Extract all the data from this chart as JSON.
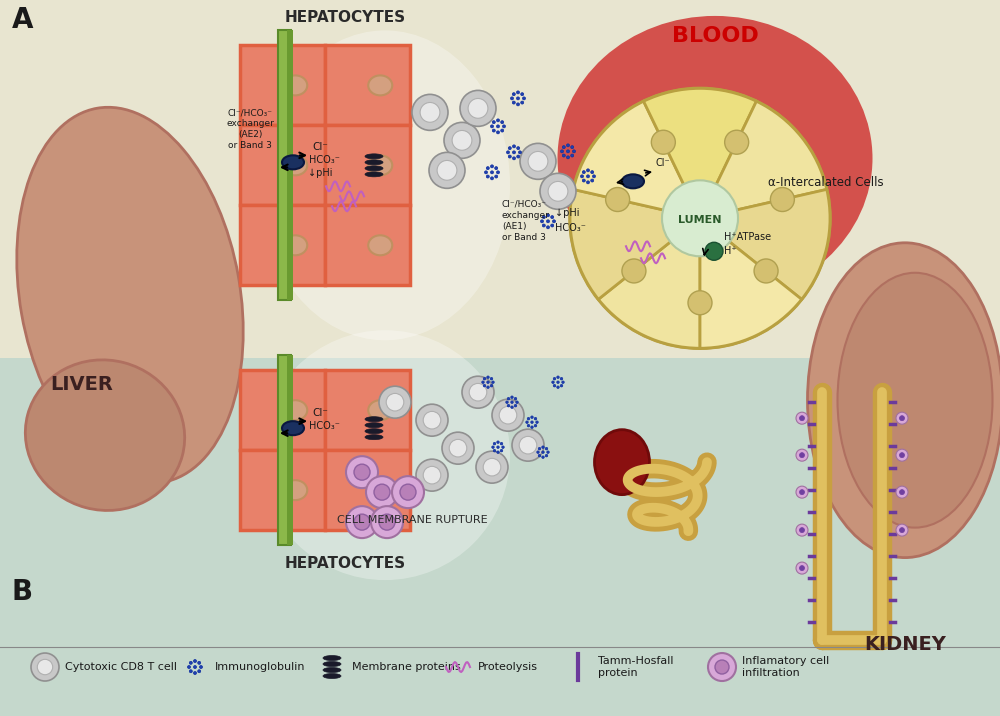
{
  "bg_top_color": "#e8e5d0",
  "bg_bottom_color": "#c5d8cc",
  "title_A": "A",
  "title_B": "B",
  "hepatocytes_label": "HEPATOCYTES",
  "liver_label": "LIVER",
  "kidney_label": "KIDNEY",
  "blood_label": "BLOOD",
  "lumen_label": "LUMEN",
  "alpha_label": "α-Intercalated Cells",
  "cell_membrane_label": "CELL MEMBRANE RUPTURE",
  "ae2_label": "Cl⁻/HCO₃⁻\nexchanger\n(AE2)\nor Band 3",
  "ae1_label": "Cl⁻/HCO₃⁻\nexchanger\n(AE1)\nor Band 3",
  "cl_label": "Cl⁻",
  "hco3_label": "HCO₃⁻",
  "phi_label": "↓pHi",
  "h_atpase_label": "H⁺ATPase",
  "h_label": "H⁺",
  "liver_color": "#c8937a",
  "liver_border": "#b07060",
  "liver_lobe_color": "#bc8870",
  "kidney_color": "#c8937a",
  "kidney_inner": "#be8870",
  "kidney_border": "#b07060",
  "hep_cell_color": "#e8816a",
  "hep_border_color": "#e06040",
  "nucleus_color": "#d4a080",
  "nucleus_border": "#c09060",
  "green_stripe1": "#8cb84a",
  "green_stripe2": "#6a9a30",
  "green_border": "#5a8a2a",
  "exchanger_color": "#1a3060",
  "exchanger_border": "#0a1840",
  "blood_color": "#cc2020",
  "tubule_outer": "#c8a040",
  "tubule_inner": "#e0c060",
  "tubule_lumen": "#f0e8c0",
  "wedge_colors": [
    "#f0e4a0",
    "#e8d890",
    "#f4e8a8",
    "#ece080",
    "#f0e4a0",
    "#e8d890",
    "#f4e8a8"
  ],
  "wedge_border": "#b8a040",
  "lumen_color": "#d8ecd0",
  "lumen_border": "#b0c8a0",
  "h_dot_color": "#2a7040",
  "h_dot_border": "#1a5030",
  "tamm_color": "#6b3a9b",
  "infiltration_color": "#d8a8d8",
  "infiltration_border": "#a070a0",
  "infiltration_inner": "#b880b8",
  "glom_color": "#8a1010",
  "glom_border": "#700a0a",
  "proteolysis_color": "#c060c0",
  "immuno_color": "#2040b0",
  "immuno_border": "#1030a0",
  "tcell_outer": "#c8c8c8",
  "tcell_border": "#909090",
  "tcell_inner": "#e8e8e8",
  "tcell_inner_border": "#b0b0b0",
  "legend_line_color": "#888888"
}
